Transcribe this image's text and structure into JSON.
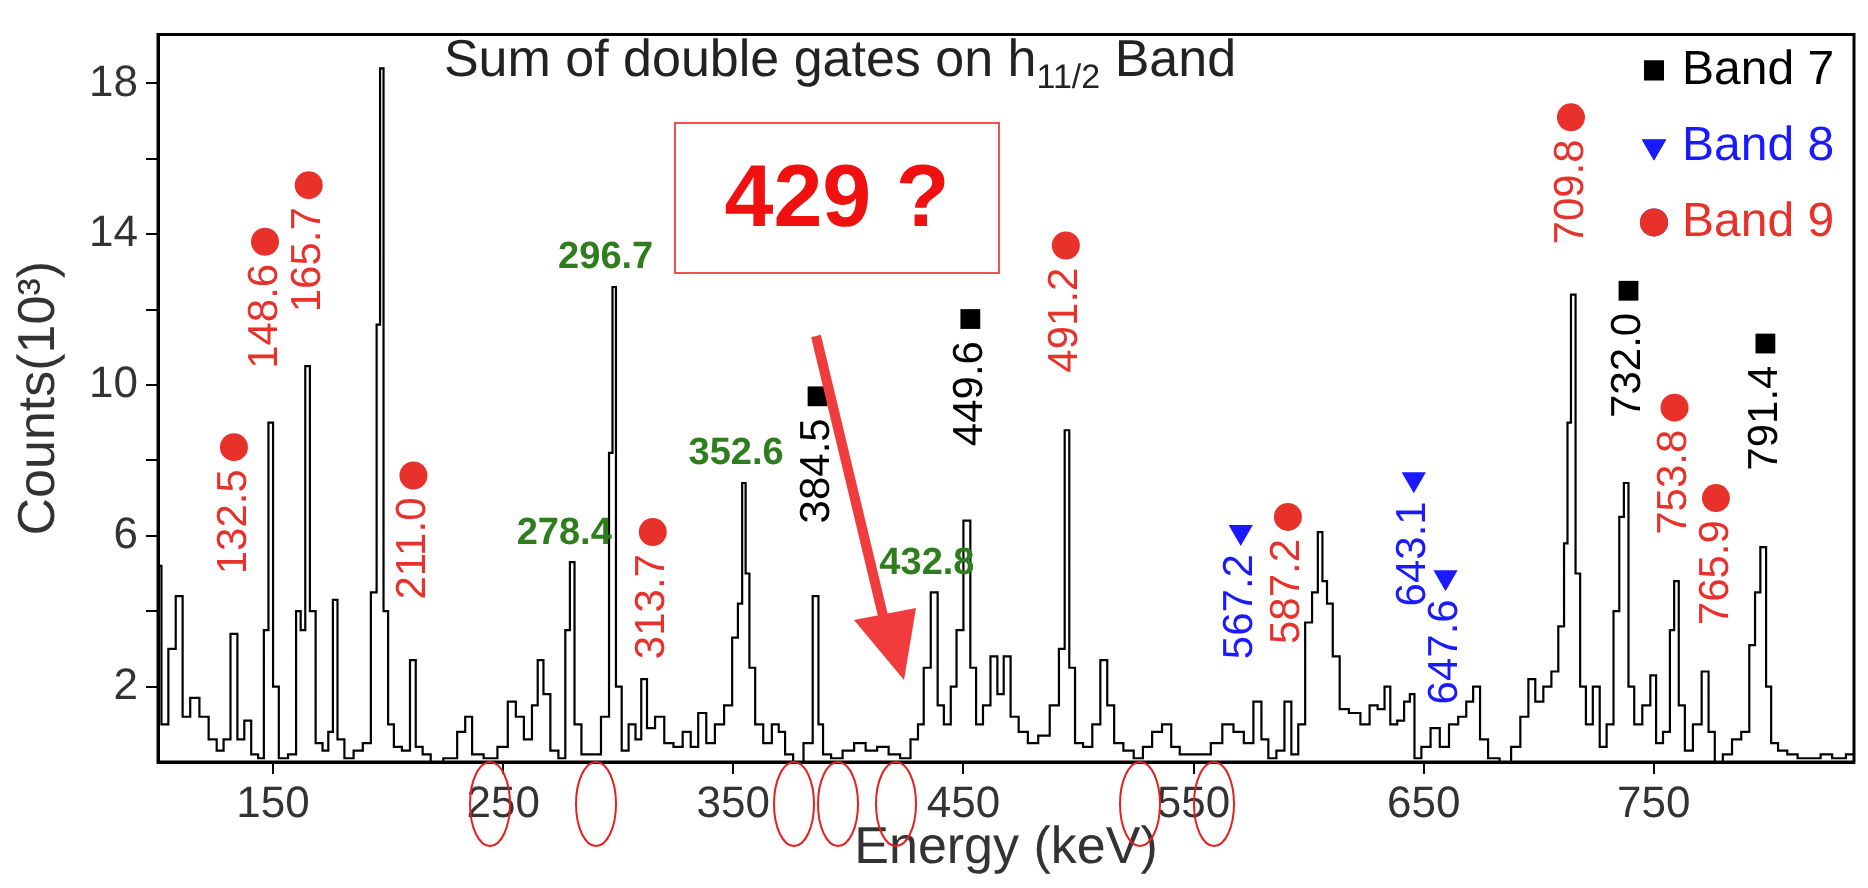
{
  "chart_data": {
    "type": "step",
    "title": "Sum of double gates on h$_{11/2}$ Band",
    "xlabel": "Energy (keV)",
    "ylabel": "Counts(10³)",
    "xlim": [
      100,
      837
    ],
    "ylim": [
      0,
      19.3
    ],
    "xticks": [
      150,
      250,
      350,
      450,
      550,
      650,
      750
    ],
    "yticks": [
      2,
      {
        "value": 4,
        "label": null
      },
      6,
      {
        "value": 8,
        "label": null
      },
      10,
      {
        "value": 12,
        "label": null
      },
      14,
      {
        "value": 16,
        "label": null
      },
      18
    ],
    "legend": "top right",
    "annotations": [
      {
        "text": "278.4",
        "x": 280,
        "y": 5.3
      },
      {
        "text": "296.7",
        "x": 298,
        "y": 12.6
      },
      {
        "text": "352.6",
        "x": 354.7,
        "y": 7.4
      },
      {
        "text": "432.8",
        "x": 437.6,
        "y": 4.5
      },
      "429 ?",
      {
        "text": "384.5",
        "x": 386.6,
        "y": 9.7
      },
      {
        "text": "449.6",
        "x": 453,
        "y": 11.75
      },
      {
        "text": "732.0",
        "x": 739,
        "y": 12.5
      },
      {
        "text": "791.4",
        "x": 798.5,
        "y": 11.1
      },
      {
        "text": "567.2",
        "x": 570.5,
        "y": 6.1
      },
      {
        "text": "643.1",
        "x": 645.7,
        "y": 7.5
      },
      {
        "text": "647.6",
        "x": 659.5,
        "y": 4.9
      },
      {
        "text": "132.5",
        "x": 133,
        "y": 8.35
      },
      {
        "text": "148.6",
        "x": 146.5,
        "y": 13.8
      },
      {
        "text": "165.7",
        "x": 165.5,
        "y": 15.3
      },
      {
        "text": "211.0",
        "x": 211,
        "y": 7.6
      },
      {
        "text": "313.7",
        "x": 315,
        "y": 6.1
      },
      {
        "text": "491.2",
        "x": 494.5,
        "y": 13.7
      },
      {
        "text": "587.2",
        "x": 591,
        "y": 6.5
      },
      {
        "text": "709.8",
        "x": 714,
        "y": 17.1
      },
      {
        "text": "753.8",
        "x": 759,
        "y": 9.4
      },
      {
        "text": "765.9",
        "x": 777,
        "y": 7.0
      }
    ],
    "series": [
      {
        "color": "#000000",
        "x": [
          100,
          103,
          106,
          109.4,
          112,
          116,
          120,
          124,
          127,
          130,
          133,
          136,
          139,
          142,
          145,
          147,
          149,
          151,
          154,
          159,
          161,
          163,
          165,
          167,
          170,
          173,
          175,
          177,
          179,
          183,
          187,
          191,
          194,
          196,
          197,
          199,
          201,
          204,
          208,
          211,
          213,
          217,
          220,
          228,
          232,
          235,
          238,
          245,
          250,
          254,
          257,
          261,
          264,
          266,
          269,
          272,
          276,
          278,
          280,
          282,
          286,
          290,
          295,
          297,
          298,
          300,
          303,
          306,
          309,
          311,
          314,
          318,
          322,
          326,
          330,
          333,
          336.5,
          340,
          344,
          348,
          351,
          353,
          354.7,
          356,
          358,
          361,
          365,
          368.5,
          371,
          374,
          378,
          383,
          386,
          388,
          390,
          395,
          400,
          405,
          410,
          415,
          420,
          425,
          429,
          431.5,
          434,
          437.6,
          440,
          443,
          446,
          448,
          452,
          454,
          457,
          460,
          463.5,
          466,
          469,
          472,
          476,
          480,
          485,
          490,
          493,
          495,
          497,
          500,
          504,
          508,
          511,
          514,
          517,
          522,
          526,
          530,
          534,
          538.6,
          542,
          546,
          550,
          555,
          560,
          565,
          569.7,
          574,
          578,
          581,
          584,
          588,
          591,
          594,
          597,
          600,
          603,
          605,
          607,
          609,
          612,
          615,
          620,
          625,
          628,
          632,
          634,
          637,
          640,
          643,
          645,
          647,
          651,
          655,
          659,
          663,
          667,
          670,
          673,
          676,
          680,
          686,
          690,
          694,
          697,
          700,
          704,
          707,
          710,
          712,
          713,
          715,
          717,
          719,
          722,
          725,
          728,
          731,
          734,
          736,
          738,
          740,
          743,
          747,
          750,
          752,
          756,
          758,
          759.7,
          762,
          765,
          769,
          772.6,
          775,
          778,
          782,
          786,
          790,
          793,
          795,
          797.6,
          800,
          802,
          806,
          810,
          815,
          820,
          825,
          830,
          837
        ],
        "values": [
          5.2,
          1.0,
          3.0,
          4.4,
          1.2,
          1.7,
          1.2,
          0.6,
          0.3,
          0.6,
          3.4,
          0.6,
          1.1,
          0.2,
          0.1,
          3.5,
          9.0,
          2.0,
          0.1,
          0.2,
          4.0,
          3.5,
          10.5,
          4.0,
          0.5,
          0.3,
          0.8,
          4.3,
          0.6,
          0.1,
          0.3,
          0.5,
          4.5,
          11.6,
          18.4,
          4.0,
          1.0,
          0.4,
          0.3,
          2.7,
          0.4,
          0.2,
          0.0,
          0.1,
          0.8,
          1.2,
          0.2,
          0.1,
          0.4,
          1.6,
          1.2,
          0.6,
          1.5,
          2.7,
          1.8,
          0.3,
          0.1,
          3.5,
          5.3,
          1.0,
          0.2,
          0.2,
          1.2,
          8.2,
          12.6,
          2.0,
          0.3,
          1.0,
          0.6,
          2.2,
          0.9,
          1.2,
          0.5,
          0.4,
          0.8,
          0.4,
          1.3,
          0.5,
          1.0,
          1.5,
          3.3,
          4.2,
          7.4,
          5.0,
          2.5,
          1.0,
          0.5,
          1.0,
          0.8,
          0.2,
          0.0,
          0.5,
          4.4,
          1.0,
          0.2,
          0.1,
          0.3,
          0.5,
          0.3,
          0.4,
          0.2,
          0.1,
          0.6,
          1.0,
          2.5,
          4.5,
          1.5,
          1.0,
          2.0,
          3.5,
          6.4,
          2.5,
          1.0,
          1.5,
          2.8,
          1.8,
          2.8,
          1.2,
          0.8,
          0.5,
          0.7,
          1.5,
          3.0,
          8.8,
          2.5,
          0.5,
          0.4,
          1.0,
          2.7,
          1.5,
          0.5,
          0.3,
          0.1,
          0.4,
          0.8,
          1.0,
          0.4,
          0.2,
          0.2,
          0.2,
          0.5,
          1.0,
          0.8,
          0.5,
          1.6,
          0.6,
          0.1,
          0.3,
          1.6,
          0.2,
          1.0,
          3.7,
          4.5,
          6.1,
          4.8,
          4.2,
          2.8,
          1.4,
          1.3,
          1.0,
          1.5,
          1.4,
          2.0,
          1.0,
          1.1,
          1.6,
          1.8,
          0.1,
          0.4,
          0.9,
          0.4,
          1.0,
          1.2,
          1.6,
          2.0,
          0.6,
          0.1,
          0.0,
          0.4,
          1.2,
          2.2,
          1.6,
          2.0,
          2.4,
          3.6,
          5.8,
          9.0,
          12.4,
          5.0,
          2.0,
          1.0,
          2.0,
          0.4,
          1.0,
          4.0,
          6.5,
          7.4,
          2.0,
          1.0,
          1.5,
          2.3,
          0.5,
          0.8,
          3.5,
          4.8,
          1.5,
          0.3,
          1.0,
          2.4,
          0.8,
          0.0,
          0.2,
          0.6,
          0.8,
          3.1,
          4.5,
          5.7,
          2.0,
          0.5,
          0.3,
          0.2,
          0.1,
          0.1,
          0.2,
          0.1,
          0.2
        ]
      },
      {
        "type": "scatter",
        "name": "Band 7",
        "color": "#000000",
        "marker": "square",
        "x": [
          386.6,
          453,
          739,
          798.5
        ],
        "values": [
          9.7,
          11.75,
          12.5,
          11.1
        ]
      },
      {
        "type": "scatter",
        "name": "Band 8",
        "color": "#1a1aff",
        "marker": "triangle",
        "x": [
          570.5,
          645.7,
          659.5
        ],
        "values": [
          6.1,
          7.5,
          4.9
        ]
      },
      {
        "type": "scatter",
        "name": "Band 9",
        "color": "#e8312a",
        "marker": "circle",
        "x": [
          133,
          146.5,
          165.5,
          211,
          315,
          494.5,
          591,
          714,
          759,
          777
        ],
        "values": [
          8.35,
          13.8,
          15.3,
          7.6,
          6.1,
          13.7,
          6.5,
          17.1,
          9.4,
          7.0
        ]
      }
    ]
  }
}
